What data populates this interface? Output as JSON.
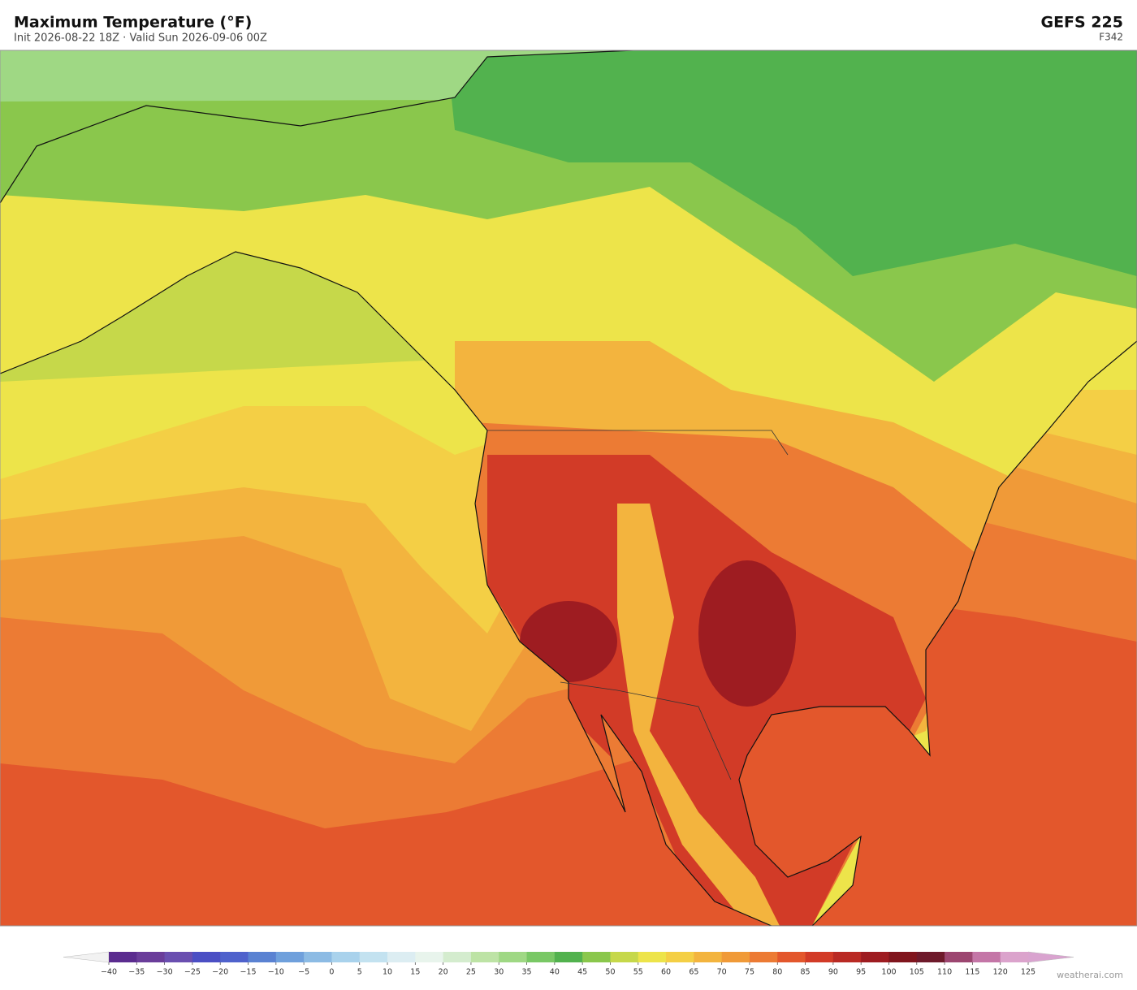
{
  "header": {
    "title": "Maximum Temperature  (°F)",
    "subtitle": "Init 2026-08-22 18Z   ·   Valid Sun 2026-09-06 00Z",
    "model": "GEFS  225",
    "frame": "F342"
  },
  "colorbar": {
    "ticks": [
      {
        "value": -40,
        "label": "−40"
      },
      {
        "value": -35,
        "label": "−35"
      },
      {
        "value": -30,
        "label": "−30"
      },
      {
        "value": -25,
        "label": "−25"
      },
      {
        "value": -20,
        "label": "−20"
      },
      {
        "value": -15,
        "label": "−15"
      },
      {
        "value": -10,
        "label": "−10"
      },
      {
        "value": -5,
        "label": "−5"
      },
      0,
      5,
      10,
      15,
      20,
      25,
      30,
      35,
      40,
      45,
      50,
      55,
      60,
      65,
      70,
      75,
      80,
      85,
      90,
      95,
      100,
      105,
      110,
      115,
      120,
      125
    ],
    "colors": [
      "#5b2c8f",
      "#6a3d9a",
      "#6a4fb0",
      "#4b4fc4",
      "#4f62cc",
      "#5a82d2",
      "#6fa0dc",
      "#8cbbe4",
      "#a9d2ec",
      "#c3e2f0",
      "#dcedf2",
      "#e8f4ec",
      "#d4ecce",
      "#bde3a5",
      "#9fd884",
      "#79c865",
      "#52b24e",
      "#8ac74c",
      "#c6d84a",
      "#ede44a",
      "#f4cf45",
      "#f3b43e",
      "#f09a38",
      "#ec7b34",
      "#e3572c",
      "#d23b27",
      "#b92a24",
      "#9e1c21",
      "#80151d",
      "#6e1a2b",
      "#9c4670",
      "#c476a7",
      "#dba3cc"
    ],
    "under_color": "#f2f2f2",
    "over_color": "#d9a3cf"
  },
  "credit": "weatherai.com"
}
